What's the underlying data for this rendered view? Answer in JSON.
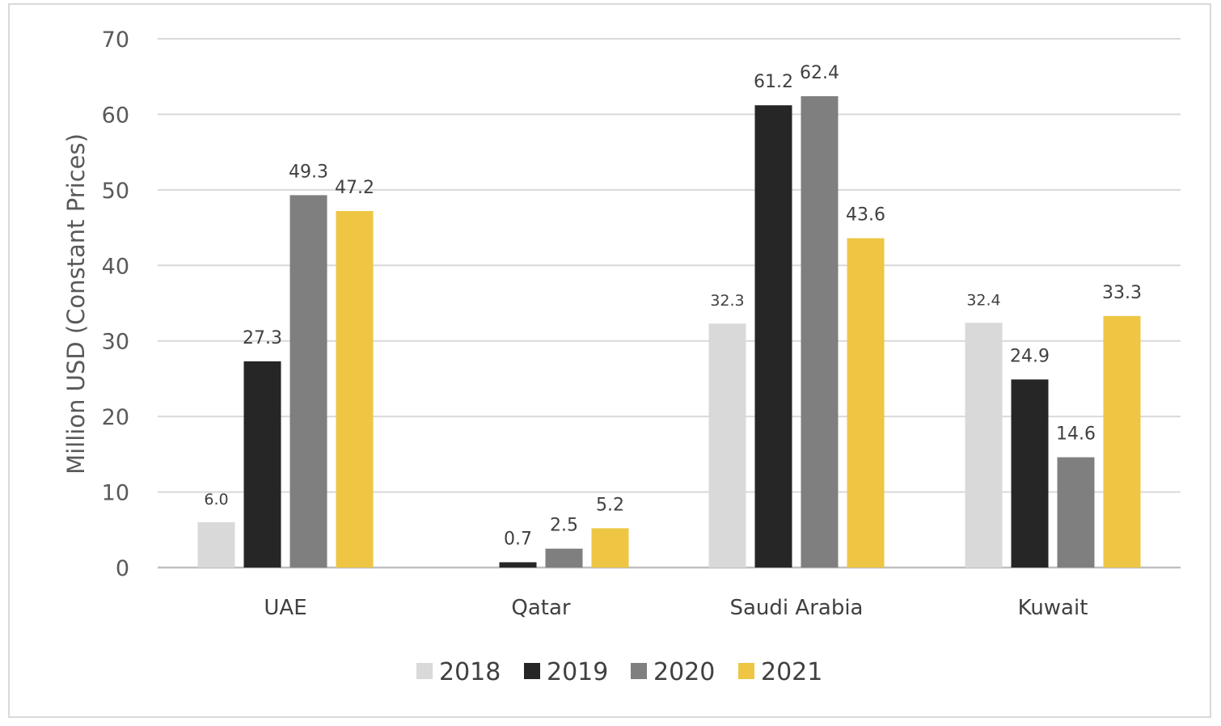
{
  "chart_data": {
    "type": "bar",
    "title": "",
    "xlabel": "",
    "ylabel": "Million USD (Constant Prices)",
    "ylim": [
      0,
      70
    ],
    "yticks": [
      "0",
      "10",
      "20",
      "30",
      "40",
      "50",
      "60",
      "70"
    ],
    "grid": true,
    "legend_position": "bottom",
    "categories": [
      "UAE",
      "Qatar",
      "Saudi Arabia",
      "Kuwait"
    ],
    "series": [
      {
        "name": "2018",
        "color": "#d9d9d9",
        "values": [
          6.0,
          null,
          32.3,
          32.4
        ],
        "labels": [
          "6.0",
          "",
          "32.3",
          "32.4"
        ]
      },
      {
        "name": "2019",
        "color": "#262626",
        "values": [
          27.3,
          0.7,
          61.2,
          24.9
        ],
        "labels": [
          "27.3",
          "0.7",
          "61.2",
          "24.9"
        ]
      },
      {
        "name": "2020",
        "color": "#7f7f7f",
        "values": [
          49.3,
          2.5,
          62.4,
          14.6
        ],
        "labels": [
          "49.3",
          "2.5",
          "62.4",
          "14.6"
        ]
      },
      {
        "name": "2021",
        "color": "#eec643",
        "values": [
          47.2,
          5.2,
          43.6,
          33.3
        ],
        "labels": [
          "47.2",
          "5.2",
          "43.6",
          "33.3"
        ]
      }
    ]
  }
}
